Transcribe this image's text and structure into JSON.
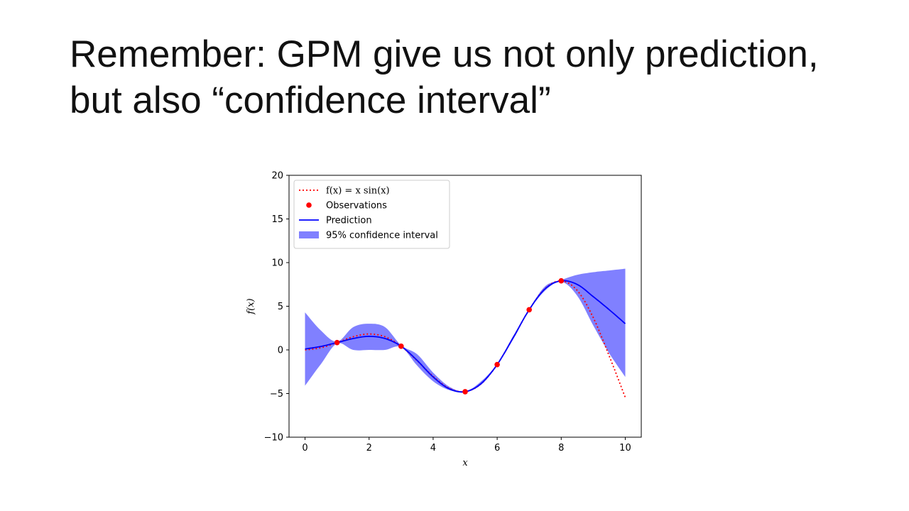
{
  "slide": {
    "title_line1": "Remember: GPM give us not only prediction,",
    "title_line2": "but also “confidence interval”"
  },
  "chart_data": {
    "type": "line",
    "title": "",
    "xlabel": "x",
    "ylabel": "f(x)",
    "xlim": [
      -0.5,
      10.5
    ],
    "ylim": [
      -10,
      20
    ],
    "xticks": [
      0,
      2,
      4,
      6,
      8,
      10
    ],
    "yticks": [
      -10,
      -5,
      0,
      5,
      10,
      15,
      20
    ],
    "ytick_labels": [
      "−10",
      "−5",
      "0",
      "5",
      "10",
      "15",
      "20"
    ],
    "legend_placement": "upper-left",
    "legend": [
      {
        "label": "f(x) = x sin(x)",
        "kind": "dotted-line",
        "color": "#ff0000"
      },
      {
        "label": "Observations",
        "kind": "marker",
        "color": "#ff0000"
      },
      {
        "label": "Prediction",
        "kind": "line",
        "color": "#0000ff"
      },
      {
        "label": "95% confidence interval",
        "kind": "band",
        "color": "#8080ff"
      }
    ],
    "series": [
      {
        "name": "f(x) = x sin(x)",
        "style": "dotted",
        "color": "#ff0000",
        "x": [
          0,
          0.5,
          1,
          1.5,
          2,
          2.5,
          3,
          3.5,
          4,
          4.5,
          5,
          5.5,
          6,
          6.5,
          7,
          7.5,
          8,
          8.5,
          9,
          9.5,
          10
        ],
        "y": [
          0,
          0.24,
          0.84,
          1.5,
          1.82,
          1.5,
          0.42,
          -1.23,
          -3.03,
          -4.4,
          -4.79,
          -3.88,
          -1.68,
          1.4,
          4.6,
          7.04,
          7.91,
          6.81,
          3.71,
          -0.71,
          -5.44
        ]
      },
      {
        "name": "Observations",
        "style": "markers",
        "color": "#ff0000",
        "x": [
          1,
          3,
          5,
          6,
          7,
          8
        ],
        "y": [
          0.84,
          0.42,
          -4.79,
          -1.68,
          4.6,
          7.91
        ]
      },
      {
        "name": "Prediction",
        "style": "solid",
        "color": "#0000ff",
        "x": [
          0,
          0.5,
          1,
          1.5,
          2,
          2.5,
          3,
          3.5,
          4,
          4.5,
          5,
          5.5,
          6,
          6.5,
          7,
          7.5,
          8,
          8.5,
          9,
          9.5,
          10
        ],
        "y": [
          0.1,
          0.4,
          0.84,
          1.3,
          1.55,
          1.3,
          0.42,
          -1.2,
          -3.1,
          -4.45,
          -4.79,
          -3.85,
          -1.68,
          1.4,
          4.6,
          7.0,
          7.91,
          7.5,
          6.1,
          4.6,
          3.0
        ]
      },
      {
        "name": "95% confidence interval",
        "style": "band",
        "color": "#8080ff",
        "x": [
          0,
          0.5,
          1,
          1.5,
          2,
          2.5,
          3,
          3.5,
          4,
          4.5,
          5,
          5.5,
          6,
          6.5,
          7,
          7.5,
          8,
          8.5,
          9,
          9.5,
          10
        ],
        "lower": [
          -4.1,
          -1.6,
          0.74,
          0.0,
          0.0,
          0.0,
          0.32,
          -1.8,
          -3.6,
          -4.6,
          -4.85,
          -4.0,
          -1.78,
          1.2,
          4.5,
          6.8,
          7.81,
          6.2,
          2.8,
          -0.4,
          -3.1
        ],
        "upper": [
          4.3,
          2.2,
          0.94,
          2.6,
          3.0,
          2.6,
          0.52,
          -0.5,
          -2.6,
          -4.2,
          -4.73,
          -3.6,
          -1.58,
          1.6,
          4.7,
          7.3,
          8.01,
          8.6,
          8.9,
          9.1,
          9.3
        ]
      }
    ]
  }
}
